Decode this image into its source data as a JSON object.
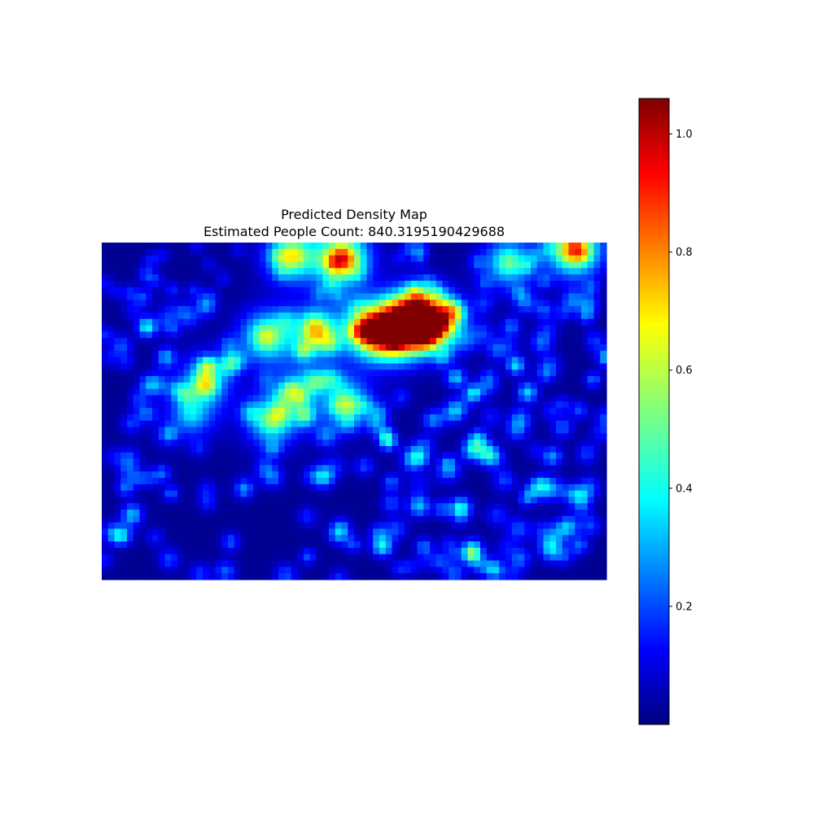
{
  "chart_data": {
    "type": "heatmap",
    "title": "Predicted Density Map",
    "subtitle": "Estimated People Count: 840.3195190429688",
    "colormap": "jet",
    "axes_visible": false,
    "grid": false,
    "color_range": [
      0.0,
      1.06
    ],
    "colorbar": {
      "location": "right",
      "ticks": [
        {
          "value": 0.2,
          "label": "0.2"
        },
        {
          "value": 0.4,
          "label": "0.4"
        },
        {
          "value": 0.6,
          "label": "0.6"
        },
        {
          "value": 0.8,
          "label": "0.8"
        },
        {
          "value": 1.0,
          "label": "1.0"
        }
      ]
    },
    "grid_size": {
      "cols": 80,
      "rows": 53
    },
    "hotspots": [
      {
        "x": 0.47,
        "y": 0.04,
        "value": 0.85
      },
      {
        "x": 0.37,
        "y": 0.03,
        "value": 0.6
      },
      {
        "x": 0.93,
        "y": 0.01,
        "value": 0.8
      },
      {
        "x": 0.8,
        "y": 0.05,
        "value": 0.45
      },
      {
        "x": 0.61,
        "y": 0.21,
        "value": 1.0
      },
      {
        "x": 0.53,
        "y": 0.25,
        "value": 0.95
      },
      {
        "x": 0.58,
        "y": 0.26,
        "value": 0.85
      },
      {
        "x": 0.66,
        "y": 0.23,
        "value": 0.8
      },
      {
        "x": 0.42,
        "y": 0.26,
        "value": 0.6
      },
      {
        "x": 0.32,
        "y": 0.27,
        "value": 0.55
      },
      {
        "x": 0.2,
        "y": 0.4,
        "value": 0.4
      },
      {
        "x": 0.33,
        "y": 0.52,
        "value": 0.45
      },
      {
        "x": 0.48,
        "y": 0.46,
        "value": 0.4
      },
      {
        "x": 0.38,
        "y": 0.44,
        "value": 0.35
      },
      {
        "x": 0.17,
        "y": 0.5,
        "value": 0.3
      }
    ]
  }
}
